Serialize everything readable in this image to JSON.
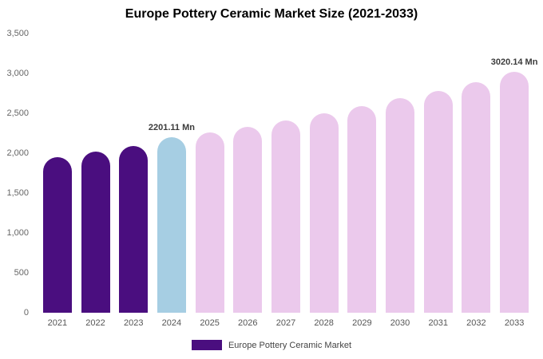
{
  "chart_data": {
    "type": "bar",
    "title": "Europe Pottery Ceramic Market Size (2021-2033)",
    "unit": "Mn",
    "categories": [
      "2021",
      "2022",
      "2023",
      "2024",
      "2025",
      "2026",
      "2027",
      "2028",
      "2029",
      "2030",
      "2031",
      "2032",
      "2033"
    ],
    "values": [
      1950,
      2020,
      2090,
      2201.11,
      2260,
      2330,
      2410,
      2500,
      2590,
      2690,
      2780,
      2890,
      3020.14
    ],
    "ylim": [
      0,
      3500
    ],
    "yticks": [
      0,
      500,
      1000,
      1500,
      2000,
      2500,
      3000,
      3500
    ],
    "ytick_labels": [
      "0",
      "500",
      "1,000",
      "1,500",
      "2,000",
      "2,500",
      "3,000",
      "3,500"
    ],
    "grid": false,
    "legend_position": "bottom",
    "bar_colors": [
      "#4a0e7f",
      "#4a0e7f",
      "#4a0e7f",
      "#a6cee3",
      "#ebc9ec",
      "#ebc9ec",
      "#ebc9ec",
      "#ebc9ec",
      "#ebc9ec",
      "#ebc9ec",
      "#ebc9ec",
      "#ebc9ec",
      "#ebc9ec"
    ],
    "annotations": [
      {
        "category": "2024",
        "text": "2201.11 Mn"
      },
      {
        "category": "2033",
        "text": "3020.14 Mn"
      }
    ],
    "legend": [
      {
        "label": "Europe Pottery Ceramic Market",
        "color": "#4a0e7f"
      }
    ]
  },
  "colors": {
    "historical_bar": "#4a0e7f",
    "base_year_bar": "#a6cee3",
    "forecast_bar": "#ebc9ec",
    "axis_text": "#666666",
    "annotation_text": "#3b3b3b"
  }
}
